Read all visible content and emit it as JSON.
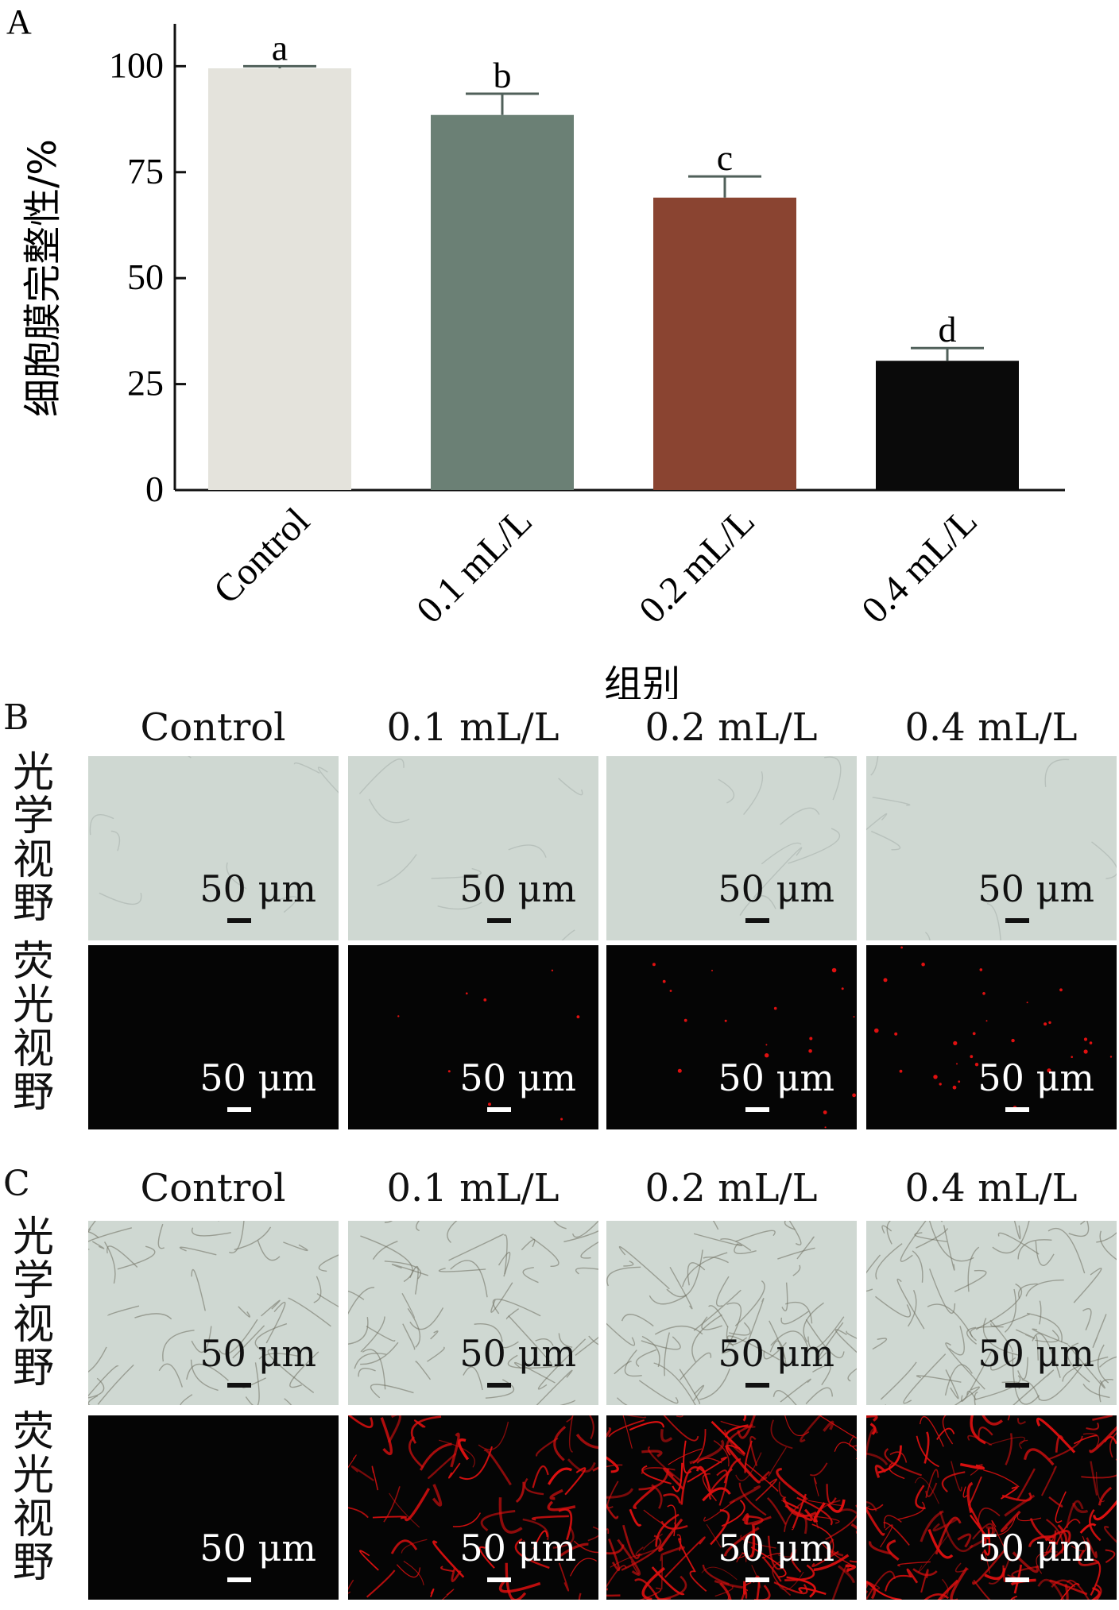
{
  "panel_labels": {
    "a": "A",
    "b": "B",
    "c": "C"
  },
  "chart_data": {
    "type": "bar",
    "title": "",
    "xlabel": "组别",
    "ylabel": "细胞膜完整性/%",
    "ylim": [
      0,
      110
    ],
    "yticks": [
      0,
      25,
      50,
      75,
      100
    ],
    "categories": [
      "Control",
      "0.1 mL/L",
      "0.2 mL/L",
      "0.4 mL/L"
    ],
    "values": [
      99.5,
      88.5,
      69,
      30.5
    ],
    "errors": [
      0.5,
      5,
      5,
      3
    ],
    "significance": [
      "a",
      "b",
      "c",
      "d"
    ],
    "colors": [
      "#e4e3dc",
      "#6b8075",
      "#8a4431",
      "#0a0a0a"
    ],
    "grid": false,
    "legend": "none"
  },
  "micrographs": {
    "column_labels": [
      "Control",
      "0.1 mL/L",
      "0.2 mL/L",
      "0.4 mL/L"
    ],
    "row_labels": {
      "optical": "光学视野",
      "fluorescence": "荧光视野"
    },
    "scale_bar_label": "50 μm",
    "bright_color": "#cfd8d2",
    "dark_color": "#050505",
    "stain_color": "#e01010"
  }
}
